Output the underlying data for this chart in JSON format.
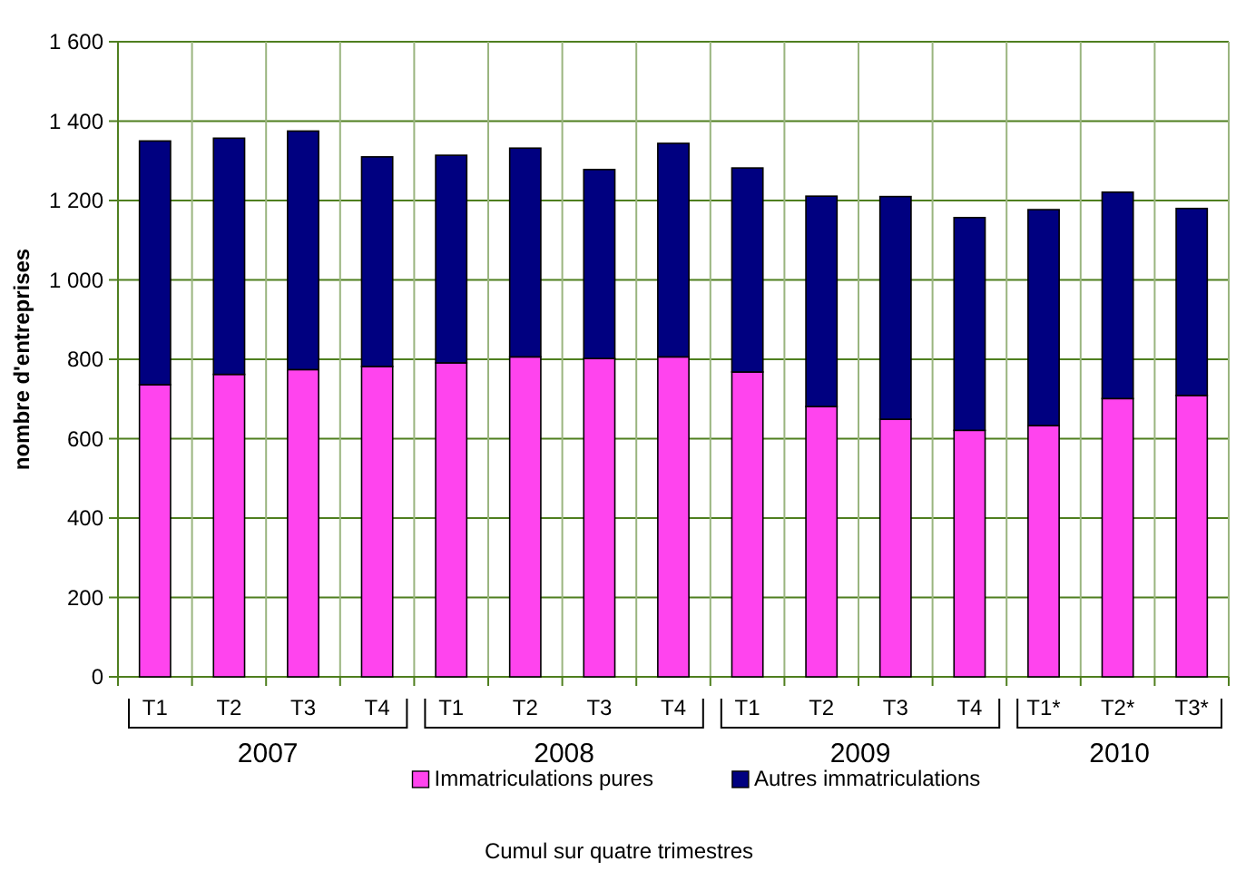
{
  "chart_data": {
    "type": "bar",
    "stacked": true,
    "ylabel": "nombre d'entreprises",
    "categories": [
      "T1",
      "T2",
      "T3",
      "T4",
      "T1",
      "T2",
      "T3",
      "T4",
      "T1",
      "T2",
      "T3",
      "T4",
      "T1*",
      "T2*",
      "T3*"
    ],
    "series": [
      {
        "name": "Immatriculations pures",
        "color": "#ff44ee",
        "values": [
          736,
          762,
          774,
          782,
          791,
          806,
          802,
          806,
          768,
          681,
          649,
          621,
          633,
          701,
          709
        ]
      },
      {
        "name": "Autres immatriculations",
        "color": "#000080",
        "values": [
          614,
          595,
          601,
          528,
          523,
          526,
          476,
          538,
          514,
          530,
          561,
          536,
          544,
          520,
          471
        ]
      }
    ],
    "ylim": [
      0,
      1600
    ],
    "yticks": [
      0,
      200,
      400,
      600,
      800,
      1000,
      1200,
      1400,
      {
        "value": 1600,
        "label": "1 600"
      }
    ],
    "grid": true,
    "legend": "bottom",
    "annotations": [
      "2007",
      "2008",
      "2009",
      "2010",
      "Cumul sur quatre trimestres"
    ]
  }
}
